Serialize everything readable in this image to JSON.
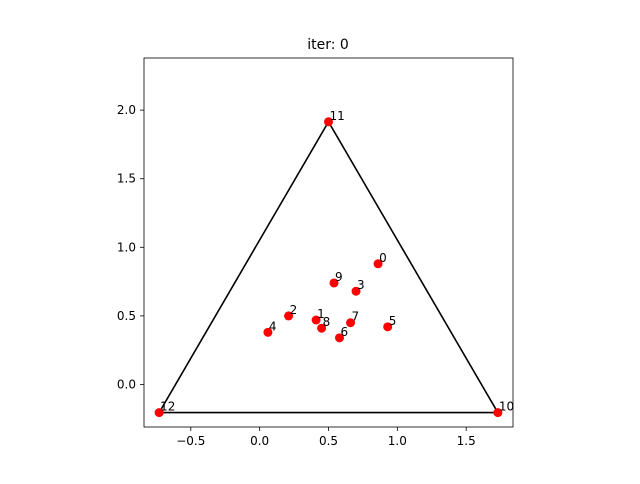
{
  "chart_data": {
    "type": "scatter",
    "title": "iter: 0",
    "xlabel": "",
    "ylabel": "",
    "xlim": [
      -0.84,
      1.84
    ],
    "ylim": [
      -0.31,
      2.38
    ],
    "grid": false,
    "legend": "none",
    "xticks": [
      -0.5,
      0.0,
      0.5,
      1.0,
      1.5
    ],
    "xtick_labels": [
      "−0.5",
      "0.0",
      "0.5",
      "1.0",
      "1.5"
    ],
    "yticks": [
      0.0,
      0.5,
      1.0,
      1.5,
      2.0
    ],
    "ytick_labels": [
      "0.0",
      "0.5",
      "1.0",
      "1.5",
      "2.0"
    ],
    "point_color": "#ff0000",
    "line_color": "#000000",
    "triangle": [
      [
        -0.73,
        -0.205
      ],
      [
        0.5,
        1.915
      ],
      [
        1.73,
        -0.205
      ]
    ],
    "points": [
      {
        "label": "0",
        "x": 0.86,
        "y": 0.88
      },
      {
        "label": "1",
        "x": 0.41,
        "y": 0.47
      },
      {
        "label": "2",
        "x": 0.21,
        "y": 0.5
      },
      {
        "label": "3",
        "x": 0.7,
        "y": 0.68
      },
      {
        "label": "4",
        "x": 0.06,
        "y": 0.38
      },
      {
        "label": "5",
        "x": 0.93,
        "y": 0.42
      },
      {
        "label": "6",
        "x": 0.58,
        "y": 0.34
      },
      {
        "label": "7",
        "x": 0.66,
        "y": 0.45
      },
      {
        "label": "8",
        "x": 0.45,
        "y": 0.41
      },
      {
        "label": "9",
        "x": 0.54,
        "y": 0.74
      },
      {
        "label": "10",
        "x": 1.73,
        "y": -0.205
      },
      {
        "label": "11",
        "x": 0.5,
        "y": 1.915
      },
      {
        "label": "12",
        "x": -0.73,
        "y": -0.205
      }
    ]
  }
}
